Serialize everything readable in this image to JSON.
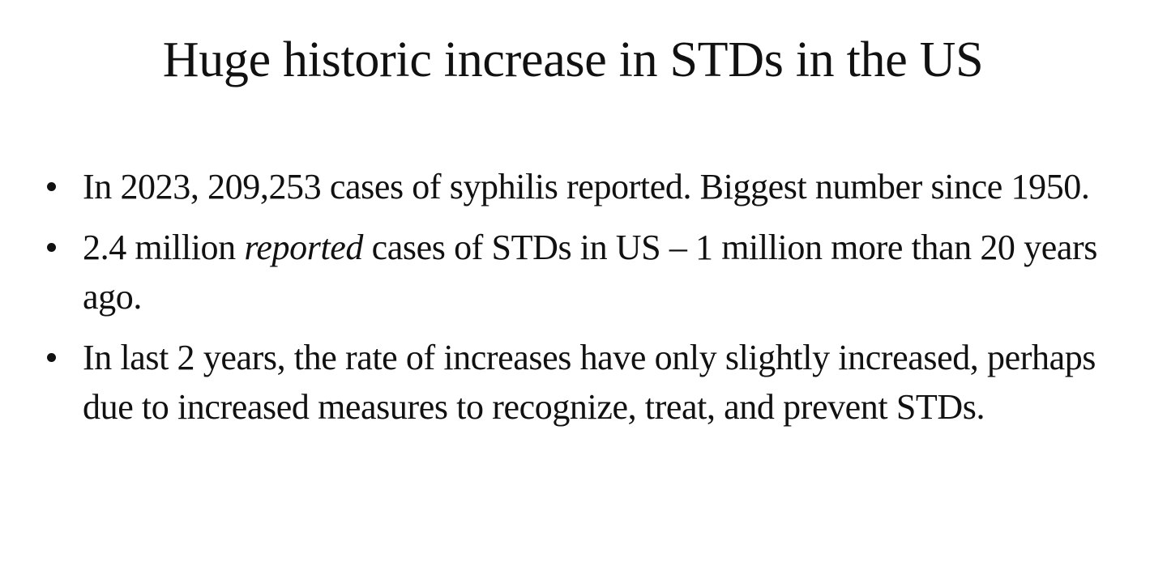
{
  "slide": {
    "title": "Huge historic increase in STDs in the US",
    "bullets": [
      {
        "text": "In 2023, 209,253 cases of syphilis reported. Biggest number since 1950."
      },
      {
        "before": "2.4 million ",
        "emphasis": "reported",
        "after": " cases of STDs in US – 1 million more than 20 years ago."
      },
      {
        "text": "In last 2 years, the rate of increases have only slightly increased, perhaps due to increased measures to recognize, treat, and prevent STDs."
      }
    ],
    "bullet_icon": "bullet-dot-icon",
    "colors": {
      "background": "#ffffff",
      "text": "#111111"
    }
  }
}
